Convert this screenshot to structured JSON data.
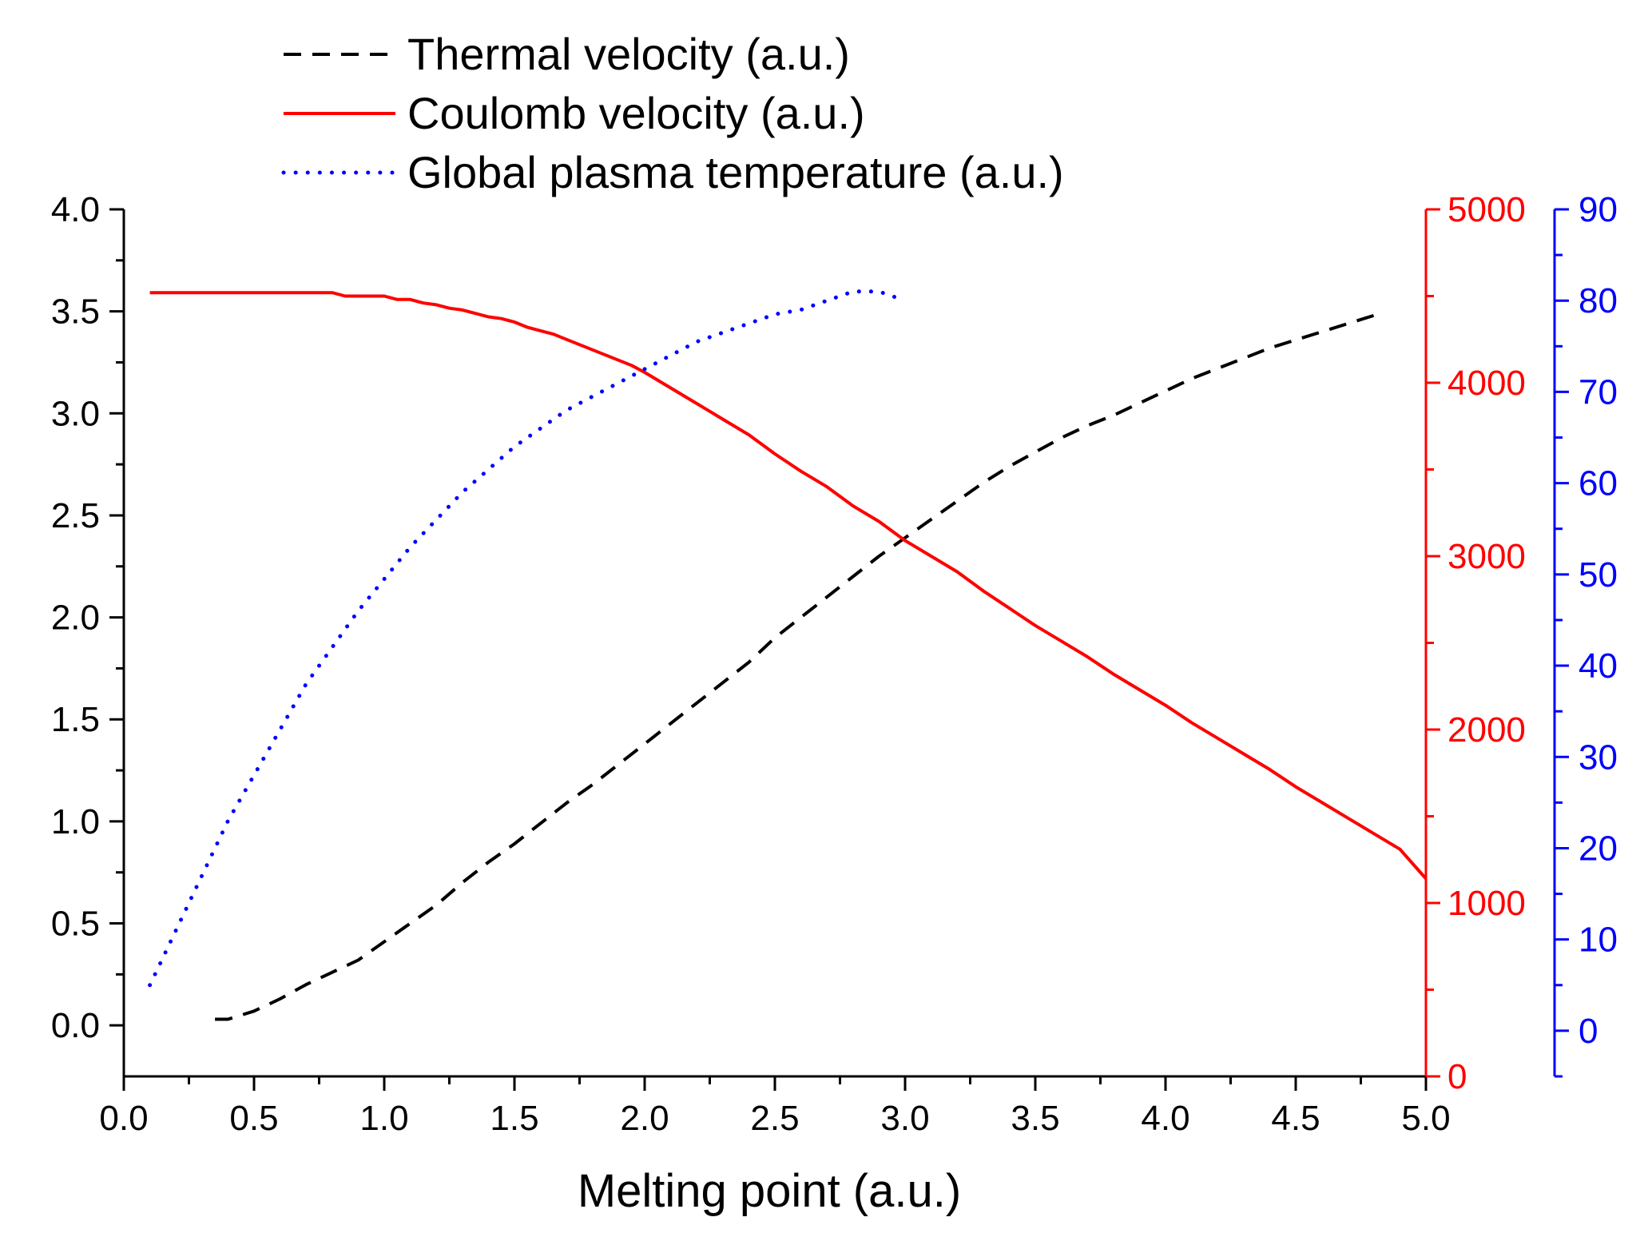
{
  "chart_data": {
    "type": "line",
    "title": "",
    "xlabel": "Melting point (a.u.)",
    "xlim": [
      0,
      5
    ],
    "xticks": [
      "0.0",
      "0.5",
      "1.0",
      "1.5",
      "2.0",
      "2.5",
      "3.0",
      "3.5",
      "4.0",
      "4.5",
      "5.0"
    ],
    "axes": {
      "left": {
        "ylim": [
          -0.25,
          4.0
        ],
        "ticks": [
          "0.0",
          "0.5",
          "1.0",
          "1.5",
          "2.0",
          "2.5",
          "3.0",
          "3.5",
          "4.0"
        ],
        "color": "#000000"
      },
      "right1": {
        "ylim": [
          0,
          5000
        ],
        "ticks": [
          "0",
          "1000",
          "2000",
          "3000",
          "4000",
          "5000"
        ],
        "color": "#ff0000"
      },
      "right2": {
        "ylim": [
          -5,
          90
        ],
        "ticks": [
          "0",
          "10",
          "20",
          "30",
          "40",
          "50",
          "60",
          "70",
          "80",
          "90"
        ],
        "color": "#0000ff"
      }
    },
    "legend_position": "top-left",
    "series": [
      {
        "name": "Thermal velocity (a.u.)",
        "axis": "left",
        "color": "#000000",
        "style": "dashed",
        "x": [
          0.35,
          0.4,
          0.5,
          0.6,
          0.7,
          0.8,
          0.9,
          1.0,
          1.1,
          1.2,
          1.3,
          1.4,
          1.5,
          1.6,
          1.7,
          1.8,
          1.9,
          2.0,
          2.1,
          2.2,
          2.3,
          2.4,
          2.5,
          2.6,
          2.7,
          2.8,
          2.9,
          3.0,
          3.1,
          3.2,
          3.3,
          3.4,
          3.5,
          3.6,
          3.7,
          3.8,
          3.9,
          4.0,
          4.1,
          4.2,
          4.3,
          4.4,
          4.5,
          4.6,
          4.7,
          4.8
        ],
        "y": [
          0.03,
          0.03,
          0.07,
          0.13,
          0.2,
          0.26,
          0.32,
          0.41,
          0.5,
          0.59,
          0.7,
          0.8,
          0.89,
          0.99,
          1.09,
          1.18,
          1.28,
          1.38,
          1.48,
          1.58,
          1.68,
          1.78,
          1.9,
          2.0,
          2.1,
          2.2,
          2.3,
          2.39,
          2.48,
          2.57,
          2.66,
          2.74,
          2.81,
          2.88,
          2.94,
          2.99,
          3.05,
          3.11,
          3.17,
          3.22,
          3.27,
          3.32,
          3.36,
          3.4,
          3.44,
          3.48
        ]
      },
      {
        "name": "Coulomb velocity (a.u.)",
        "axis": "right1",
        "color": "#ff0000",
        "style": "solid",
        "x": [
          0.1,
          0.2,
          0.3,
          0.4,
          0.5,
          0.6,
          0.7,
          0.8,
          0.85,
          0.9,
          1.0,
          1.05,
          1.1,
          1.15,
          1.2,
          1.25,
          1.3,
          1.35,
          1.4,
          1.45,
          1.5,
          1.55,
          1.6,
          1.65,
          1.7,
          1.75,
          1.8,
          1.85,
          1.9,
          1.95,
          2.0,
          2.1,
          2.2,
          2.3,
          2.4,
          2.5,
          2.6,
          2.7,
          2.8,
          2.9,
          3.0,
          3.1,
          3.2,
          3.3,
          3.4,
          3.5,
          3.6,
          3.7,
          3.8,
          3.9,
          4.0,
          4.1,
          4.2,
          4.3,
          4.4,
          4.5,
          4.6,
          4.7,
          4.8,
          4.9,
          5.0
        ],
        "y": [
          4520,
          4520,
          4520,
          4520,
          4520,
          4520,
          4520,
          4520,
          4500,
          4500,
          4500,
          4480,
          4480,
          4460,
          4450,
          4430,
          4420,
          4400,
          4380,
          4370,
          4350,
          4320,
          4300,
          4280,
          4250,
          4220,
          4190,
          4160,
          4130,
          4100,
          4060,
          3970,
          3880,
          3790,
          3700,
          3590,
          3490,
          3400,
          3290,
          3200,
          3090,
          3000,
          2910,
          2800,
          2700,
          2600,
          2510,
          2420,
          2320,
          2230,
          2140,
          2040,
          1950,
          1860,
          1770,
          1670,
          1580,
          1490,
          1400,
          1310,
          1140
        ]
      },
      {
        "name": "Global plasma temperature (a.u.)",
        "axis": "right2",
        "color": "#0000ff",
        "style": "dotted",
        "x": [
          0.1,
          0.2,
          0.3,
          0.4,
          0.5,
          0.6,
          0.7,
          0.8,
          0.9,
          1.0,
          1.1,
          1.2,
          1.3,
          1.4,
          1.5,
          1.6,
          1.7,
          1.8,
          1.9,
          2.0,
          2.1,
          2.2,
          2.3,
          2.4,
          2.5,
          2.6,
          2.7,
          2.8,
          2.9,
          3.0
        ],
        "y": [
          5,
          11,
          17,
          23,
          28,
          33,
          38,
          42,
          46,
          49.5,
          53,
          56,
          59,
          61.5,
          64,
          66,
          68,
          69.5,
          71,
          72.5,
          74,
          75.5,
          76.5,
          77.5,
          78.5,
          79,
          80,
          81,
          81,
          80
        ]
      }
    ]
  }
}
